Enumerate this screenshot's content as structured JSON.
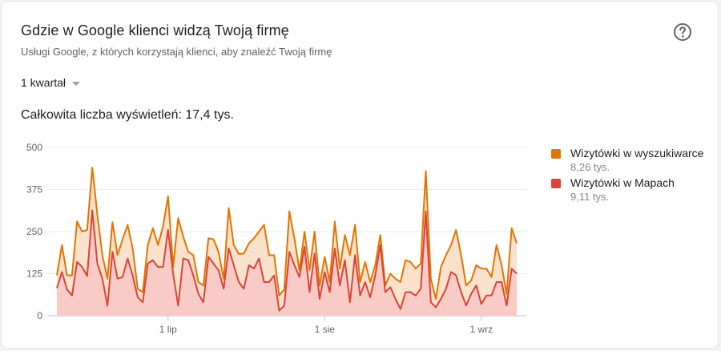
{
  "header": {
    "title": "Gdzie w Google klienci widzą Twoją firmę",
    "subtitle": "Usługi Google, z których korzystają klienci, aby znaleźć Twoją firmę",
    "help_icon": "help-circle-icon"
  },
  "period_selector": {
    "selected": "1 kwartał"
  },
  "summary": {
    "total_text": "Całkowita liczba wyświetleń: 17,4 tys."
  },
  "legend": [
    {
      "name": "Wizytówki w wyszukiwarce",
      "value": "8,26 tys.",
      "color": "#e37400"
    },
    {
      "name": "Wizytówki w Mapach",
      "value": "9,11 tys.",
      "color": "#db4437"
    }
  ],
  "chart_data": {
    "type": "area",
    "stacked": true,
    "ylim": [
      0,
      500
    ],
    "y_ticks": [
      "0",
      "125",
      "250",
      "375",
      "500"
    ],
    "x_tick_labels": [
      {
        "label": "1 lip",
        "index": 22
      },
      {
        "label": "1 sie",
        "index": 53
      },
      {
        "label": "1 wrz",
        "index": 84
      }
    ],
    "grid": true,
    "legend_position": "right",
    "colors": {
      "search_line": "#e37400",
      "search_fill": "#fbe2cc",
      "maps_line": "#db4437",
      "maps_fill": "#f9cbc7"
    },
    "series": [
      {
        "name": "Wizytówki w Mapach",
        "values": [
          82,
          130,
          78,
          60,
          160,
          145,
          118,
          313,
          155,
          110,
          30,
          190,
          110,
          115,
          170,
          120,
          55,
          40,
          155,
          165,
          145,
          145,
          255,
          125,
          30,
          170,
          165,
          120,
          65,
          40,
          175,
          155,
          135,
          80,
          200,
          150,
          100,
          80,
          150,
          140,
          170,
          100,
          100,
          120,
          15,
          30,
          190,
          150,
          115,
          205,
          70,
          185,
          50,
          130,
          70,
          200,
          90,
          165,
          40,
          180,
          60,
          100,
          55,
          120,
          210,
          70,
          85,
          50,
          20,
          70,
          70,
          60,
          80,
          310,
          40,
          25,
          50,
          80,
          130,
          120,
          70,
          30,
          65,
          90,
          35,
          60,
          60,
          100,
          100,
          30,
          140,
          125
        ]
      },
      {
        "name": "Wizytówki w wyszukiwarce",
        "values": [
          38,
          80,
          42,
          60,
          120,
          105,
          137,
          127,
          145,
          70,
          80,
          88,
          70,
          112,
          100,
          80,
          25,
          30,
          55,
          95,
          65,
          120,
          100,
          20,
          260,
          65,
          25,
          60,
          35,
          50,
          55,
          72,
          55,
          30,
          120,
          60,
          83,
          105,
          65,
          90,
          80,
          170,
          80,
          60,
          45,
          48,
          120,
          80,
          20,
          45,
          65,
          65,
          40,
          45,
          30,
          80,
          50,
          75,
          140,
          90,
          40,
          60,
          45,
          30,
          30,
          20,
          40,
          60,
          80,
          95,
          90,
          80,
          75,
          120,
          70,
          25,
          95,
          100,
          80,
          135,
          110,
          60,
          40,
          60,
          105,
          80,
          55,
          110,
          50,
          35,
          120,
          90
        ]
      }
    ]
  }
}
